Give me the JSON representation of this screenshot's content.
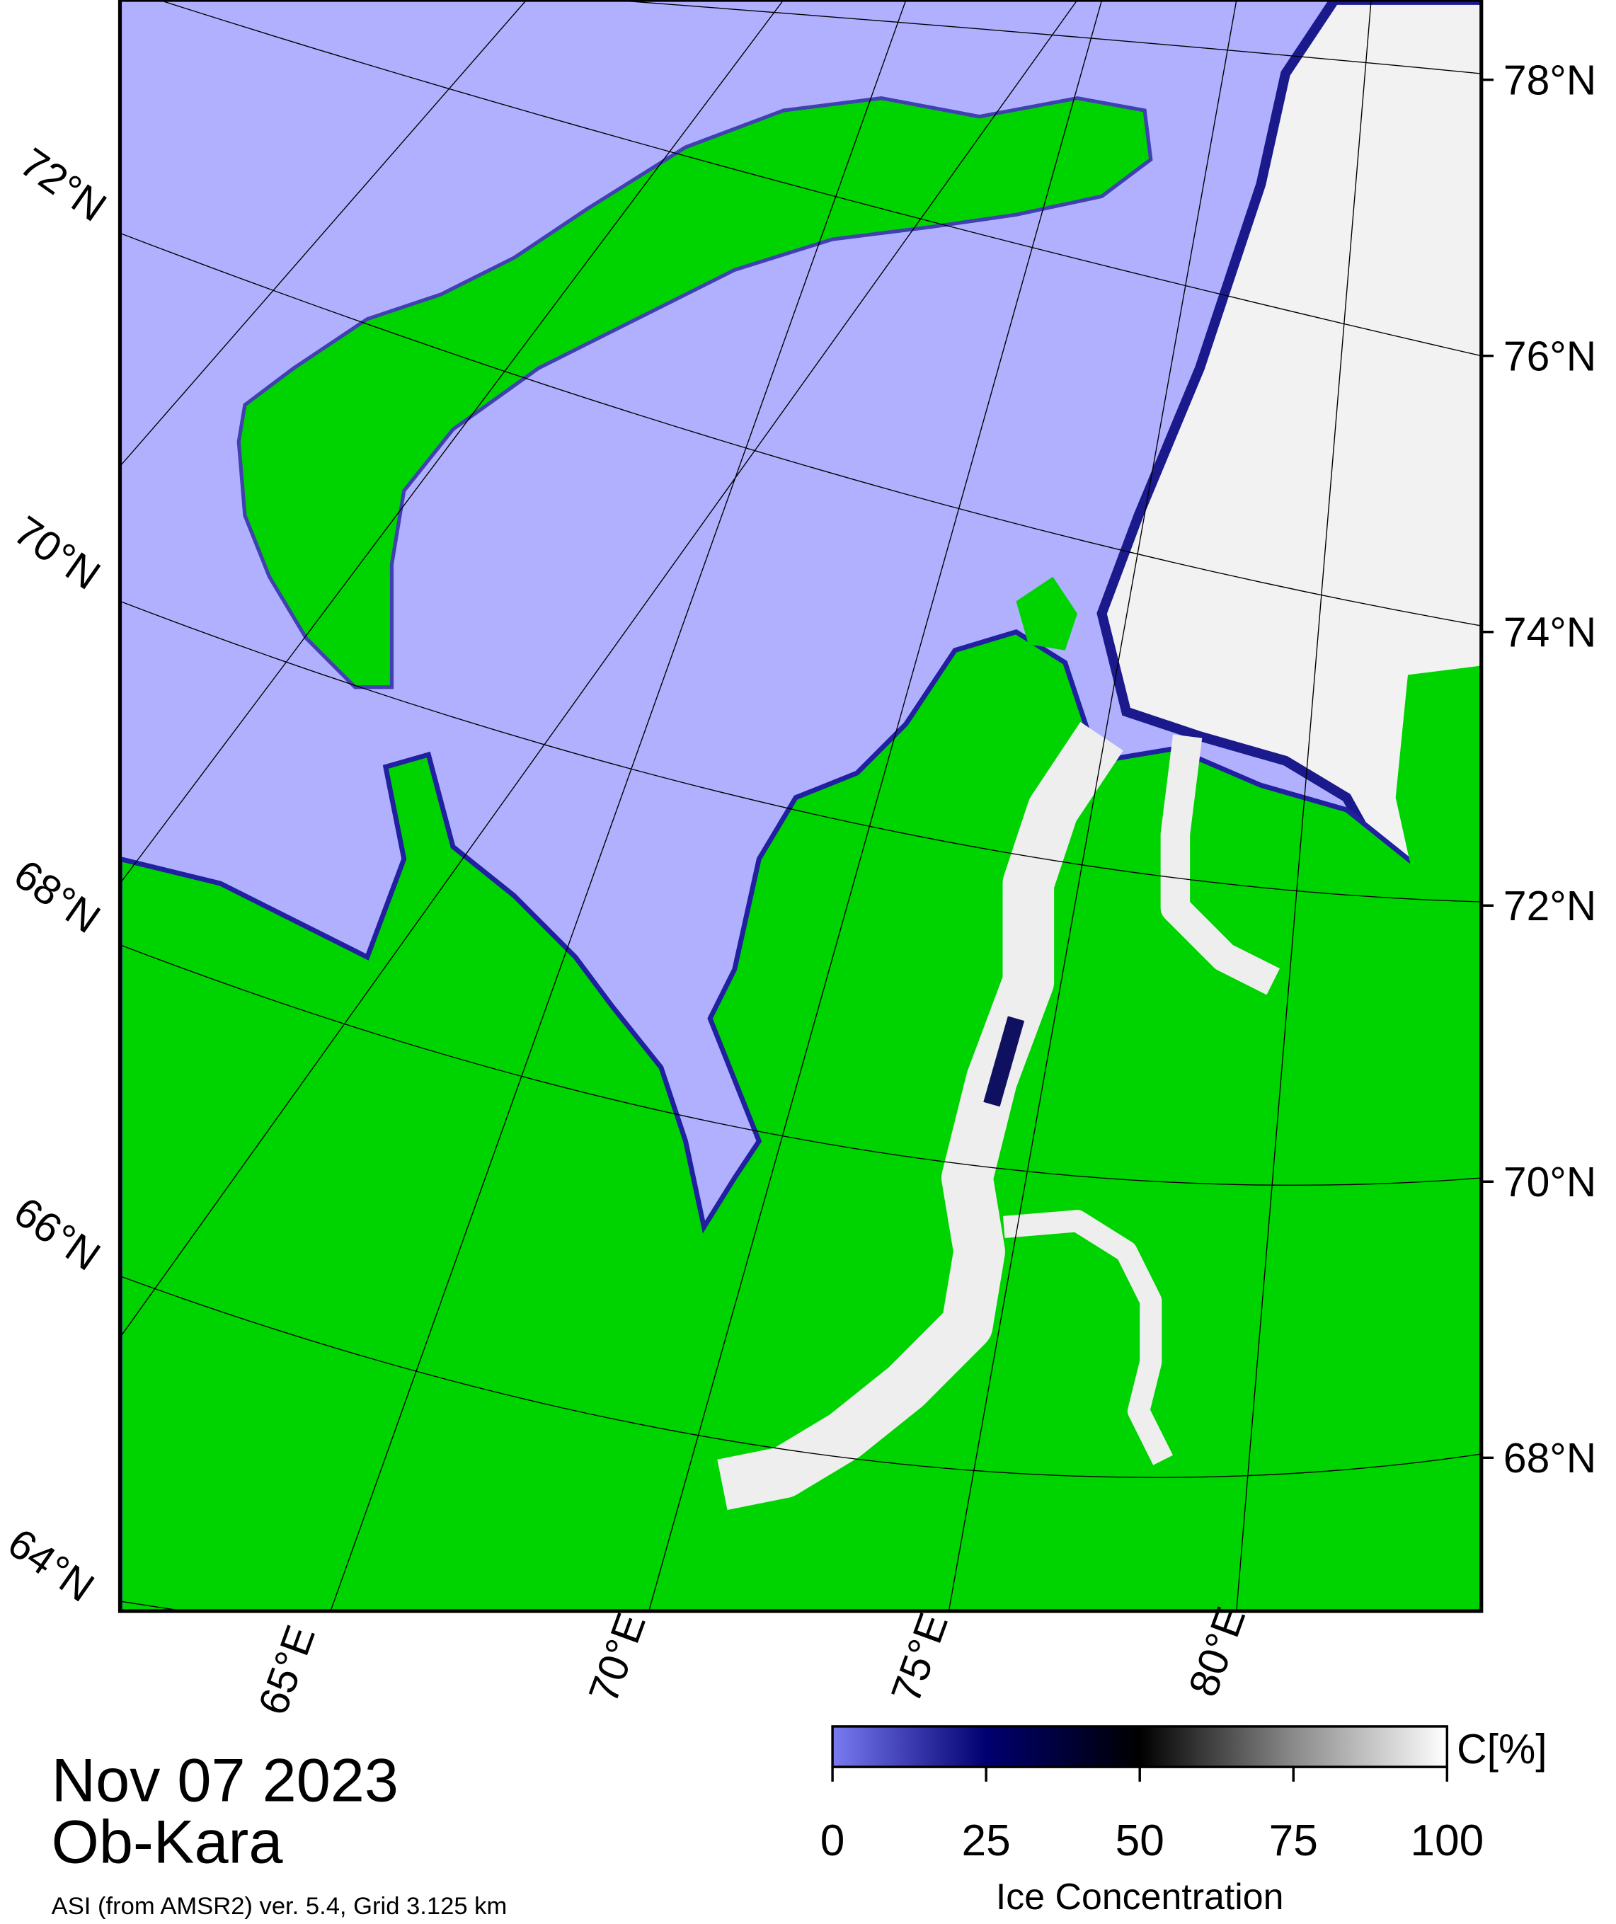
{
  "map": {
    "lat_labels_left": [
      "72°N",
      "70°N",
      "68°N",
      "66°N",
      "64°N"
    ],
    "lat_labels_right": [
      "78°N",
      "76°N",
      "74°N",
      "72°N",
      "70°N",
      "68°N"
    ],
    "lon_labels": [
      "65°E",
      "70°E",
      "75°E",
      "80°E"
    ],
    "date": "Nov 07 2023",
    "region": "Ob-Kara",
    "source": "ASI (from AMSR2) ver. 5.4,  Grid 3.125 km"
  },
  "colorbar": {
    "unit": "C[%]",
    "title": "Ice Concentration",
    "range": [
      0,
      100
    ],
    "ticks": [
      0,
      25,
      50,
      75,
      100
    ]
  }
}
